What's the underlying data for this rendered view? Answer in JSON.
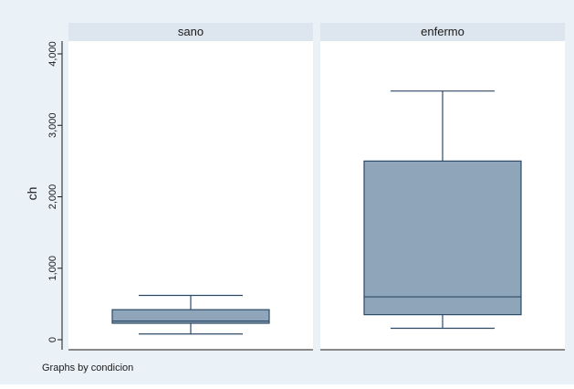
{
  "chart_data": {
    "type": "boxplot",
    "ylabel": "ch",
    "ylim": [
      0,
      4000
    ],
    "yticks": [
      0,
      1000,
      2000,
      3000,
      4000
    ],
    "ytick_labels": [
      "0",
      "1,000",
      "2,000",
      "3,000",
      "4,000"
    ],
    "grid": false,
    "note": "Graphs by condicion",
    "panels": [
      {
        "title": "sano",
        "whisker_low": 80,
        "q1": 230,
        "median": 260,
        "q3": 420,
        "whisker_high": 620
      },
      {
        "title": "enfermo",
        "whisker_low": 160,
        "q1": 350,
        "median": 600,
        "q3": 2500,
        "whisker_high": 3480
      }
    ],
    "colors": {
      "background": "#eaf1f7",
      "panel_header": "#dde6ee",
      "plot_area": "#ffffff",
      "box_fill": "#8fa5ba",
      "box_stroke": "#2c4a66",
      "axis": "#1a1a1a"
    }
  }
}
